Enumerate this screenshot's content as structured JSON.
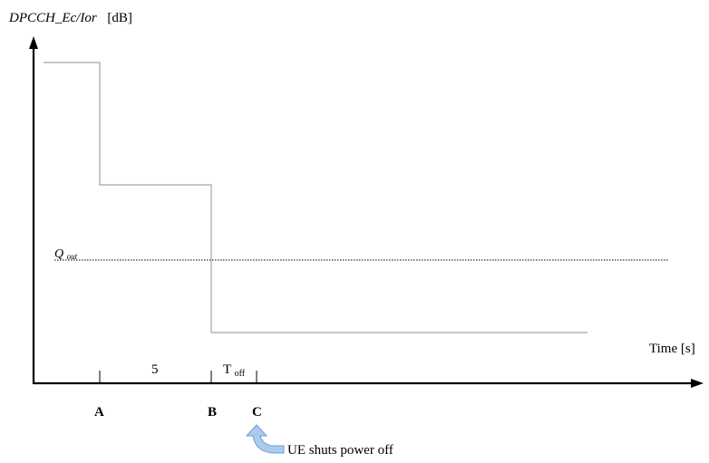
{
  "diagram": {
    "y_axis_label_italic": "DPCCH_Ec/Ior",
    "y_axis_unit": "[dB]",
    "x_axis_label": "Time [s]",
    "threshold_label": "Q",
    "threshold_label_sub": "out",
    "interval_label_5": "5",
    "interval_label_toff": "T",
    "interval_label_toff_sub": "off",
    "marker_a": "A",
    "marker_b": "B",
    "marker_c": "C",
    "callout_text": "UE shuts power off",
    "colors": {
      "axis": "#000000",
      "signal_line": "#b4b4b4",
      "threshold_line": "#333333",
      "callout_fill": "#a9ccee",
      "callout_stroke": "#6a9ed4"
    }
  }
}
